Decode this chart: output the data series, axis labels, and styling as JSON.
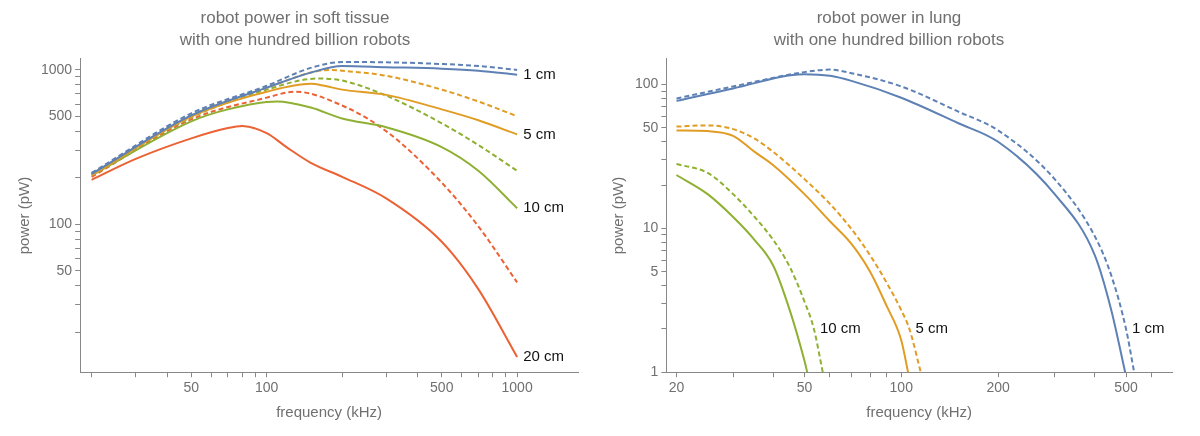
{
  "chart_data": [
    {
      "type": "line",
      "title": "robot power in soft tissue",
      "subtitle": "with one hundred billion robots",
      "xlabel": "frequency (kHz)",
      "ylabel": "power (pW)",
      "log": "xy",
      "marker": "none",
      "xlim": [
        18,
        1750
      ],
      "ylim": [
        11,
        1180
      ],
      "xticks": [
        {
          "value": 20,
          "label": null
        },
        {
          "value": 30,
          "label": null
        },
        {
          "value": 40,
          "label": null
        },
        50,
        {
          "value": 60,
          "label": null
        },
        {
          "value": 70,
          "label": null
        },
        {
          "value": 80,
          "label": null
        },
        {
          "value": 90,
          "label": null
        },
        100,
        {
          "value": 200,
          "label": null
        },
        {
          "value": 300,
          "label": null
        },
        {
          "value": 400,
          "label": null
        },
        500,
        {
          "value": 600,
          "label": null
        },
        {
          "value": 700,
          "label": null
        },
        {
          "value": 800,
          "label": null
        },
        {
          "value": 900,
          "label": null
        },
        1000
      ],
      "yticks": [
        {
          "value": 20,
          "label": null
        },
        {
          "value": 30,
          "label": null
        },
        {
          "value": 40,
          "label": null
        },
        50,
        {
          "value": 60,
          "label": null
        },
        {
          "value": 70,
          "label": null
        },
        {
          "value": 80,
          "label": null
        },
        {
          "value": 90,
          "label": null
        },
        100,
        {
          "value": 200,
          "label": null
        },
        {
          "value": 300,
          "label": null
        },
        {
          "value": 400,
          "label": null
        },
        500,
        {
          "value": 600,
          "label": null
        },
        {
          "value": 700,
          "label": null
        },
        {
          "value": 800,
          "label": null
        },
        {
          "value": 900,
          "label": null
        },
        1000
      ],
      "series": [
        {
          "color": "#5e81b5",
          "line_style": "solid",
          "x": [
            20,
            50,
            100,
            150,
            200,
            300,
            500,
            700,
            1000
          ],
          "values": [
            212,
            507,
            767,
            960,
            1061,
            1042,
            1018,
            988,
            931
          ]
        },
        {
          "color": "#5e81b5",
          "line_style": "dashed",
          "x": [
            20,
            50,
            100,
            150,
            200,
            300,
            500,
            700,
            1000
          ],
          "values": [
            215,
            523,
            789,
            1030,
            1125,
            1120,
            1092,
            1060,
            1000
          ]
        },
        {
          "color": "#e19c24",
          "line_style": "solid",
          "x": [
            20,
            50,
            100,
            150,
            170,
            200,
            300,
            500,
            700,
            1000
          ],
          "values": [
            207,
            498,
            722,
            813,
            789,
            745,
            689,
            555,
            472,
            382
          ]
        },
        {
          "color": "#e19c24",
          "line_style": "dashed",
          "x": [
            20,
            50,
            100,
            180,
            200,
            300,
            500,
            700,
            1000
          ],
          "values": [
            212,
            507,
            767,
            1000,
            988,
            916,
            745,
            624,
            501
          ]
        },
        {
          "color": "#8fb032",
          "line_style": "solid",
          "x": [
            20,
            50,
            70,
            110,
            150,
            200,
            300,
            500,
            700,
            1000
          ],
          "values": [
            207,
            464,
            555,
            624,
            570,
            484,
            425,
            316,
            222,
            127
          ]
        },
        {
          "color": "#8fb032",
          "line_style": "dashed",
          "x": [
            20,
            50,
            100,
            160,
            200,
            300,
            500,
            700,
            1000
          ],
          "values": [
            212,
            492,
            745,
            879,
            853,
            681,
            451,
            326,
            222
          ]
        },
        {
          "color": "#eb6235",
          "line_style": "solid",
          "x": [
            20,
            30,
            50,
            70,
            80,
            100,
            120,
            150,
            200,
            300,
            500,
            700,
            1000
          ],
          "values": [
            194,
            265,
            360,
            420,
            433,
            389,
            316,
            250,
            203,
            147,
            77,
            38,
            13.8
          ]
        },
        {
          "color": "#eb6235",
          "line_style": "dashed",
          "x": [
            20,
            50,
            100,
            130,
            200,
            300,
            500,
            700,
            1000
          ],
          "values": [
            203,
            478,
            661,
            723,
            588,
            401,
            186,
            97,
            42
          ]
        }
      ],
      "annotations": [
        {
          "text": "1 cm",
          "x": 1000,
          "y": 931
        },
        {
          "text": "5 cm",
          "x": 1000,
          "y": 382
        },
        {
          "text": "10 cm",
          "x": 1000,
          "y": 127
        },
        {
          "text": "20 cm",
          "x": 1000,
          "y": 13.8
        }
      ]
    },
    {
      "type": "line",
      "title": "robot power in lung",
      "subtitle": "with one hundred billion robots",
      "xlabel": "frequency (kHz)",
      "ylabel": "power (pW)",
      "log": "xy",
      "marker": "none",
      "xlim": [
        18.6,
        695
      ],
      "ylim": [
        1,
        151
      ],
      "xticks": [
        20,
        {
          "value": 30,
          "label": null
        },
        {
          "value": 40,
          "label": null
        },
        50,
        {
          "value": 60,
          "label": null
        },
        {
          "value": 70,
          "label": null
        },
        {
          "value": 80,
          "label": null
        },
        {
          "value": 90,
          "label": null
        },
        100,
        200,
        {
          "value": 300,
          "label": null
        },
        {
          "value": 400,
          "label": null
        },
        500,
        {
          "value": 600,
          "label": null
        }
      ],
      "yticks": [
        1,
        {
          "value": 2,
          "label": null
        },
        {
          "value": 3,
          "label": null
        },
        {
          "value": 4,
          "label": null
        },
        5,
        {
          "value": 6,
          "label": null
        },
        {
          "value": 7,
          "label": null
        },
        {
          "value": 8,
          "label": null
        },
        {
          "value": 9,
          "label": null
        },
        10,
        {
          "value": 20,
          "label": null
        },
        {
          "value": 30,
          "label": null
        },
        {
          "value": 40,
          "label": null
        },
        50,
        {
          "value": 60,
          "label": null
        },
        {
          "value": 70,
          "label": null
        },
        {
          "value": 80,
          "label": null
        },
        {
          "value": 90,
          "label": null
        },
        100
      ],
      "series": [
        {
          "color": "#5e81b5",
          "line_style": "solid",
          "x": [
            20,
            30,
            50,
            60,
            70,
            100,
            150,
            200,
            300,
            400,
            450,
            497
          ],
          "values": [
            77,
            94,
            118,
            115,
            106,
            81,
            54,
            40,
            17.3,
            6.5,
            2.7,
            1
          ]
        },
        {
          "color": "#5e81b5",
          "line_style": "dashed",
          "x": [
            20,
            30,
            50,
            60,
            70,
            100,
            150,
            200,
            300,
            400,
            450,
            500,
            530
          ],
          "values": [
            80,
            97,
            122,
            127,
            120,
            97,
            65,
            48,
            22,
            8.8,
            4.7,
            2,
            1
          ]
        },
        {
          "color": "#e19c24",
          "line_style": "solid",
          "x": [
            20,
            25,
            30,
            35,
            40,
            50,
            60,
            70,
            80,
            90,
            100,
            105
          ],
          "values": [
            48,
            47.5,
            44,
            34,
            27.5,
            17.3,
            11.2,
            7.8,
            5,
            2.9,
            1.67,
            1
          ]
        },
        {
          "color": "#e19c24",
          "line_style": "dashed",
          "x": [
            20,
            25,
            30,
            35,
            40,
            50,
            60,
            70,
            80,
            90,
            100,
            106,
            115
          ],
          "values": [
            51,
            52,
            49,
            42,
            34,
            22,
            14.8,
            9.9,
            6.5,
            4.2,
            2.7,
            2,
            1
          ]
        },
        {
          "color": "#8fb032",
          "line_style": "solid",
          "x": [
            20,
            25,
            30,
            35,
            40,
            45,
            50,
            51
          ],
          "values": [
            23.5,
            17.3,
            12,
            8.3,
            5.5,
            2.7,
            1.2,
            1
          ]
        },
        {
          "color": "#8fb032",
          "line_style": "dashed",
          "x": [
            20,
            25,
            30,
            35,
            40,
            45,
            50,
            53.5,
            57
          ],
          "values": [
            28,
            24.3,
            17.3,
            12,
            8.3,
            5.4,
            3.1,
            2,
            1
          ]
        }
      ],
      "annotations": [
        {
          "text": "10 cm",
          "x": 53.5,
          "y": 2
        },
        {
          "text": "5 cm",
          "x": 106,
          "y": 2
        },
        {
          "text": "1 cm",
          "x": 500,
          "y": 2
        }
      ]
    }
  ]
}
